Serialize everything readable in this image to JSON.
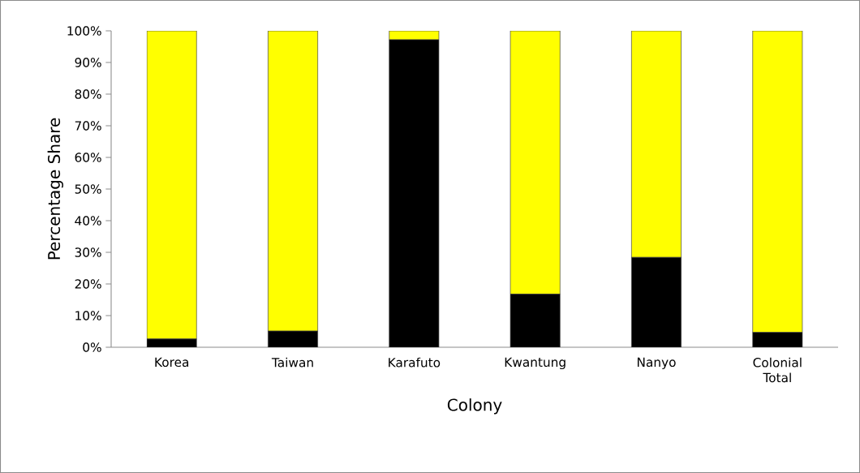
{
  "chart_data": {
    "type": "bar",
    "stacked": true,
    "xlabel": "Colony",
    "ylabel": "Percentage Share",
    "categories": [
      "Korea",
      "Taiwan",
      "Karafuto",
      "Kwantung",
      "Nanyo",
      "Colonial Total"
    ],
    "series": [
      {
        "color": "#000000",
        "values": [
          2.6,
          5.1,
          97.2,
          16.8,
          28.4,
          4.7
        ]
      },
      {
        "color": "#ffff00",
        "values": [
          97.4,
          94.9,
          2.8,
          83.2,
          71.6,
          95.3
        ]
      }
    ],
    "ylim": [
      0,
      100
    ],
    "yticks": [
      {
        "value": 0,
        "label": "0%"
      },
      {
        "value": 10,
        "label": "10%"
      },
      {
        "value": 20,
        "label": "20%"
      },
      {
        "value": 30,
        "label": "30%"
      },
      {
        "value": 40,
        "label": "40%"
      },
      {
        "value": 50,
        "label": "50%"
      },
      {
        "value": 60,
        "label": "60%"
      },
      {
        "value": 70,
        "label": "70%"
      },
      {
        "value": 80,
        "label": "80%"
      },
      {
        "value": 90,
        "label": "90%"
      },
      {
        "value": 100,
        "label": "100%"
      }
    ],
    "grid": false
  }
}
